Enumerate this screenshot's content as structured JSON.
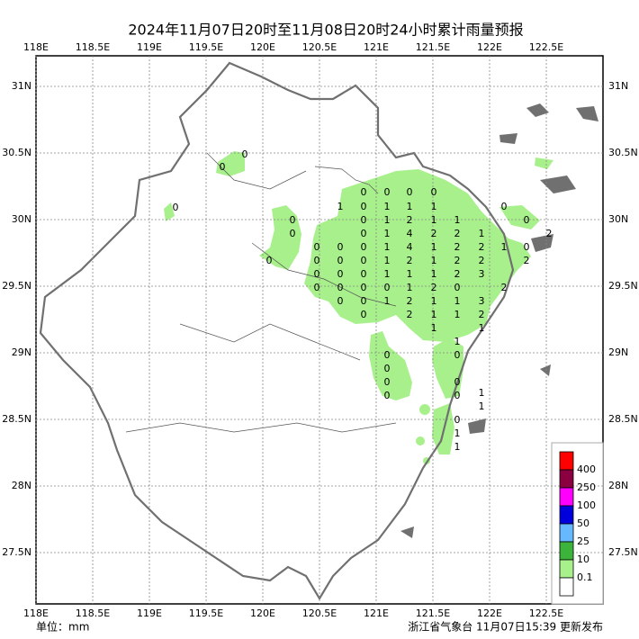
{
  "header": {
    "title": "2024年11月07日20时至11月08日20时24小时累计雨量预报"
  },
  "axes": {
    "xticks": [
      {
        "value": 118,
        "label": "118E"
      },
      {
        "value": 118.5,
        "label": "118.5E"
      },
      {
        "value": 119,
        "label": "119E"
      },
      {
        "value": 119.5,
        "label": "119.5E"
      },
      {
        "value": 120,
        "label": "120E"
      },
      {
        "value": 120.5,
        "label": "120.5E"
      },
      {
        "value": 121,
        "label": "121E"
      },
      {
        "value": 121.5,
        "label": "121.5E"
      },
      {
        "value": 122,
        "label": "122E"
      },
      {
        "value": 122.5,
        "label": "122.5E"
      }
    ],
    "yticks": [
      {
        "value": 31,
        "label": "31N"
      },
      {
        "value": 30.5,
        "label": "30.5N"
      },
      {
        "value": 30,
        "label": "30N"
      },
      {
        "value": 29.5,
        "label": "29.5N"
      },
      {
        "value": 29,
        "label": "29N"
      },
      {
        "value": 28.5,
        "label": "28.5N"
      },
      {
        "value": 28,
        "label": "28N"
      },
      {
        "value": 27.5,
        "label": "27.5N"
      }
    ]
  },
  "station_values": [
    0,
    0,
    0,
    0,
    0,
    0,
    0,
    1,
    0,
    1,
    1,
    1,
    0,
    0,
    0,
    1,
    2,
    1,
    1,
    0,
    0,
    0,
    1,
    4,
    2,
    2,
    1,
    2,
    0,
    0,
    0,
    1,
    4,
    1,
    2,
    2,
    1,
    0,
    0,
    0,
    0,
    0,
    1,
    2,
    1,
    2,
    2,
    2,
    0,
    0,
    0,
    1,
    1,
    1,
    2,
    3,
    0,
    0,
    0,
    0,
    1,
    2,
    0,
    2,
    0,
    0,
    1,
    2,
    1,
    1,
    3,
    0,
    2,
    1,
    1,
    2,
    1,
    1,
    1,
    0,
    0,
    0,
    0,
    0,
    0,
    0,
    1,
    1,
    0,
    1,
    1
  ],
  "legend": {
    "colors": [
      "#ff0000",
      "#8b0040",
      "#ff00ff",
      "#0000dd",
      "#66b8ff",
      "#3cb43c",
      "#a8f08c",
      "#ffffff"
    ],
    "thresholds": [
      400,
      250,
      100,
      50,
      25,
      10,
      0.1
    ]
  },
  "footer": {
    "unit": "单位：mm",
    "issuer": "浙江省气象台 11月07日15:39 更新发布"
  }
}
